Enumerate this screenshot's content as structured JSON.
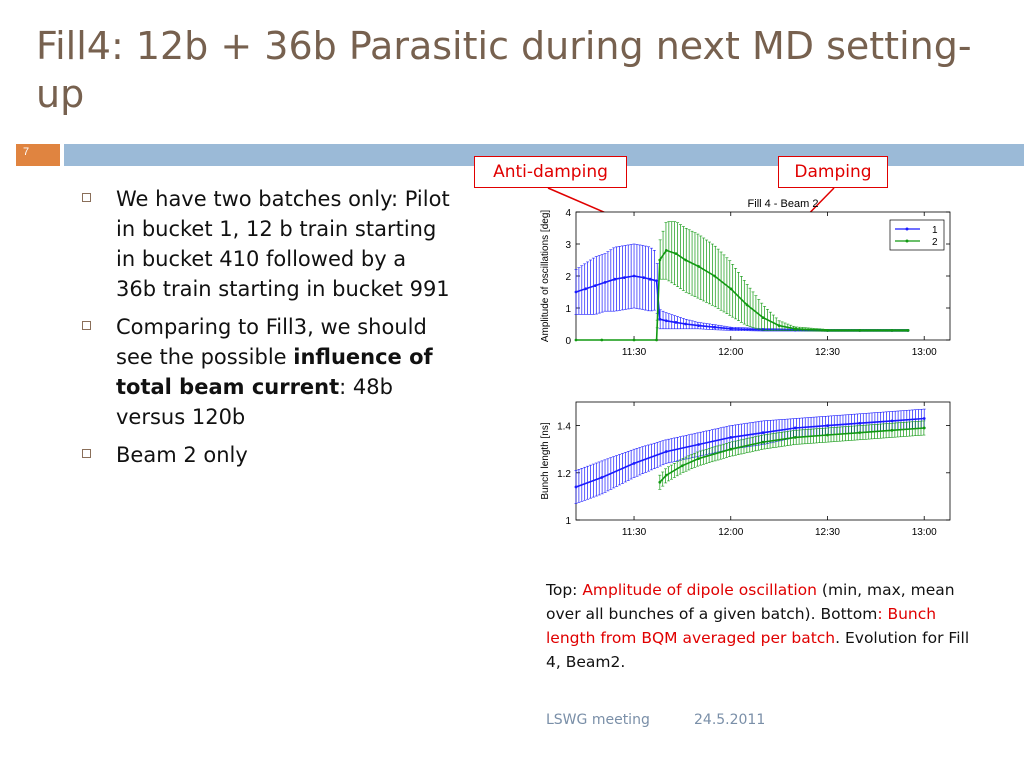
{
  "slide": {
    "title": "Fill4: 12b + 36b  Parasitic during next MD setting-up",
    "number": "7"
  },
  "bullets": [
    {
      "text": "We have two batches only:  Pilot in bucket 1, 12 b train starting in bucket 410 followed by a 36b train starting in bucket 991"
    },
    {
      "pre": "Comparing to Fill3, we should see the possible ",
      "bold": "influence of total beam current",
      "post": ": 48b versus 120b"
    },
    {
      "text": "Beam 2 only"
    }
  ],
  "callouts": {
    "anti_damping": "Anti-damping",
    "damping": "Damping"
  },
  "caption": {
    "p1": "Top: ",
    "p2": "Amplitude of dipole oscillation",
    "p3": " (min, max, mean over all bunches of a given batch). Bottom",
    "p4": ":  Bunch length from BQM averaged per batch",
    "p5": ". Evolution for Fill 4, Beam2."
  },
  "footer": {
    "left": "LSWG meeting",
    "right": "24.5.2011"
  },
  "colors": {
    "series1": "#1a1aff",
    "series2": "#119911",
    "accent": "#e00000",
    "title": "#77614f",
    "rule": "#9bbad7",
    "slide_num_bg": "#e08440"
  },
  "chart_data": [
    {
      "type": "line",
      "title": "Fill 4 - Beam 2",
      "xlabel": "",
      "ylabel": "Amplitude of oscillations [deg]",
      "x_ticks": [
        "11:30",
        "12:00",
        "12:30",
        "13:00"
      ],
      "x_tick_minutes": [
        690,
        720,
        750,
        780
      ],
      "xlim_minutes": [
        672,
        788
      ],
      "ylim": [
        0,
        4
      ],
      "y_ticks": [
        0,
        1,
        2,
        3,
        4
      ],
      "legend": "top-right",
      "series": [
        {
          "name": "1",
          "x_minutes": [
            672,
            675,
            678,
            681,
            684,
            687,
            690,
            693,
            695,
            697,
            698,
            700,
            703,
            706,
            710,
            715,
            720,
            730,
            740,
            750,
            760,
            770,
            775
          ],
          "values": [
            1.5,
            1.6,
            1.7,
            1.8,
            1.9,
            1.95,
            2.0,
            1.95,
            1.9,
            1.85,
            0.65,
            0.6,
            0.55,
            0.5,
            0.45,
            0.4,
            0.35,
            0.32,
            0.31,
            0.3,
            0.3,
            0.3,
            0.3
          ],
          "err": [
            0.7,
            0.8,
            0.9,
            0.9,
            1.0,
            1.0,
            1.0,
            1.0,
            1.0,
            0.9,
            0.3,
            0.25,
            0.2,
            0.15,
            0.1,
            0.08,
            0.05,
            0.04,
            0.03,
            0.03,
            0.03,
            0.03,
            0.03
          ]
        },
        {
          "name": "2",
          "x_minutes": [
            672,
            680,
            690,
            697,
            698,
            700,
            703,
            706,
            710,
            715,
            720,
            725,
            730,
            735,
            740,
            750,
            760,
            770,
            775
          ],
          "values": [
            0,
            0,
            0,
            0,
            2.5,
            2.8,
            2.7,
            2.5,
            2.3,
            2.0,
            1.6,
            1.1,
            0.7,
            0.45,
            0.35,
            0.3,
            0.3,
            0.3,
            0.3
          ],
          "err": [
            0,
            0,
            0,
            0,
            0.6,
            0.9,
            1.0,
            1.0,
            1.0,
            0.95,
            0.85,
            0.65,
            0.4,
            0.15,
            0.06,
            0.03,
            0.03,
            0.03,
            0.03
          ]
        }
      ]
    },
    {
      "type": "line",
      "title": "",
      "xlabel": "",
      "ylabel": "Bunch length [ns]",
      "x_ticks": [
        "11:30",
        "12:00",
        "12:30",
        "13:00"
      ],
      "x_tick_minutes": [
        690,
        720,
        750,
        780
      ],
      "xlim_minutes": [
        672,
        788
      ],
      "ylim": [
        1,
        1.5
      ],
      "y_ticks": [
        1,
        1.2,
        1.4
      ],
      "series": [
        {
          "name": "1",
          "x_minutes": [
            672,
            680,
            690,
            700,
            710,
            720,
            730,
            740,
            750,
            760,
            770,
            780
          ],
          "values": [
            1.14,
            1.18,
            1.24,
            1.29,
            1.32,
            1.35,
            1.37,
            1.39,
            1.4,
            1.41,
            1.42,
            1.43
          ],
          "err": [
            0.07,
            0.07,
            0.06,
            0.05,
            0.05,
            0.05,
            0.05,
            0.04,
            0.04,
            0.04,
            0.04,
            0.04
          ]
        },
        {
          "name": "2",
          "x_minutes": [
            698,
            700,
            705,
            710,
            720,
            730,
            740,
            750,
            760,
            770,
            780
          ],
          "values": [
            1.16,
            1.19,
            1.23,
            1.26,
            1.3,
            1.33,
            1.35,
            1.36,
            1.37,
            1.38,
            1.39
          ],
          "err": [
            0.03,
            0.03,
            0.03,
            0.03,
            0.03,
            0.03,
            0.03,
            0.03,
            0.03,
            0.03,
            0.03
          ]
        }
      ]
    }
  ]
}
